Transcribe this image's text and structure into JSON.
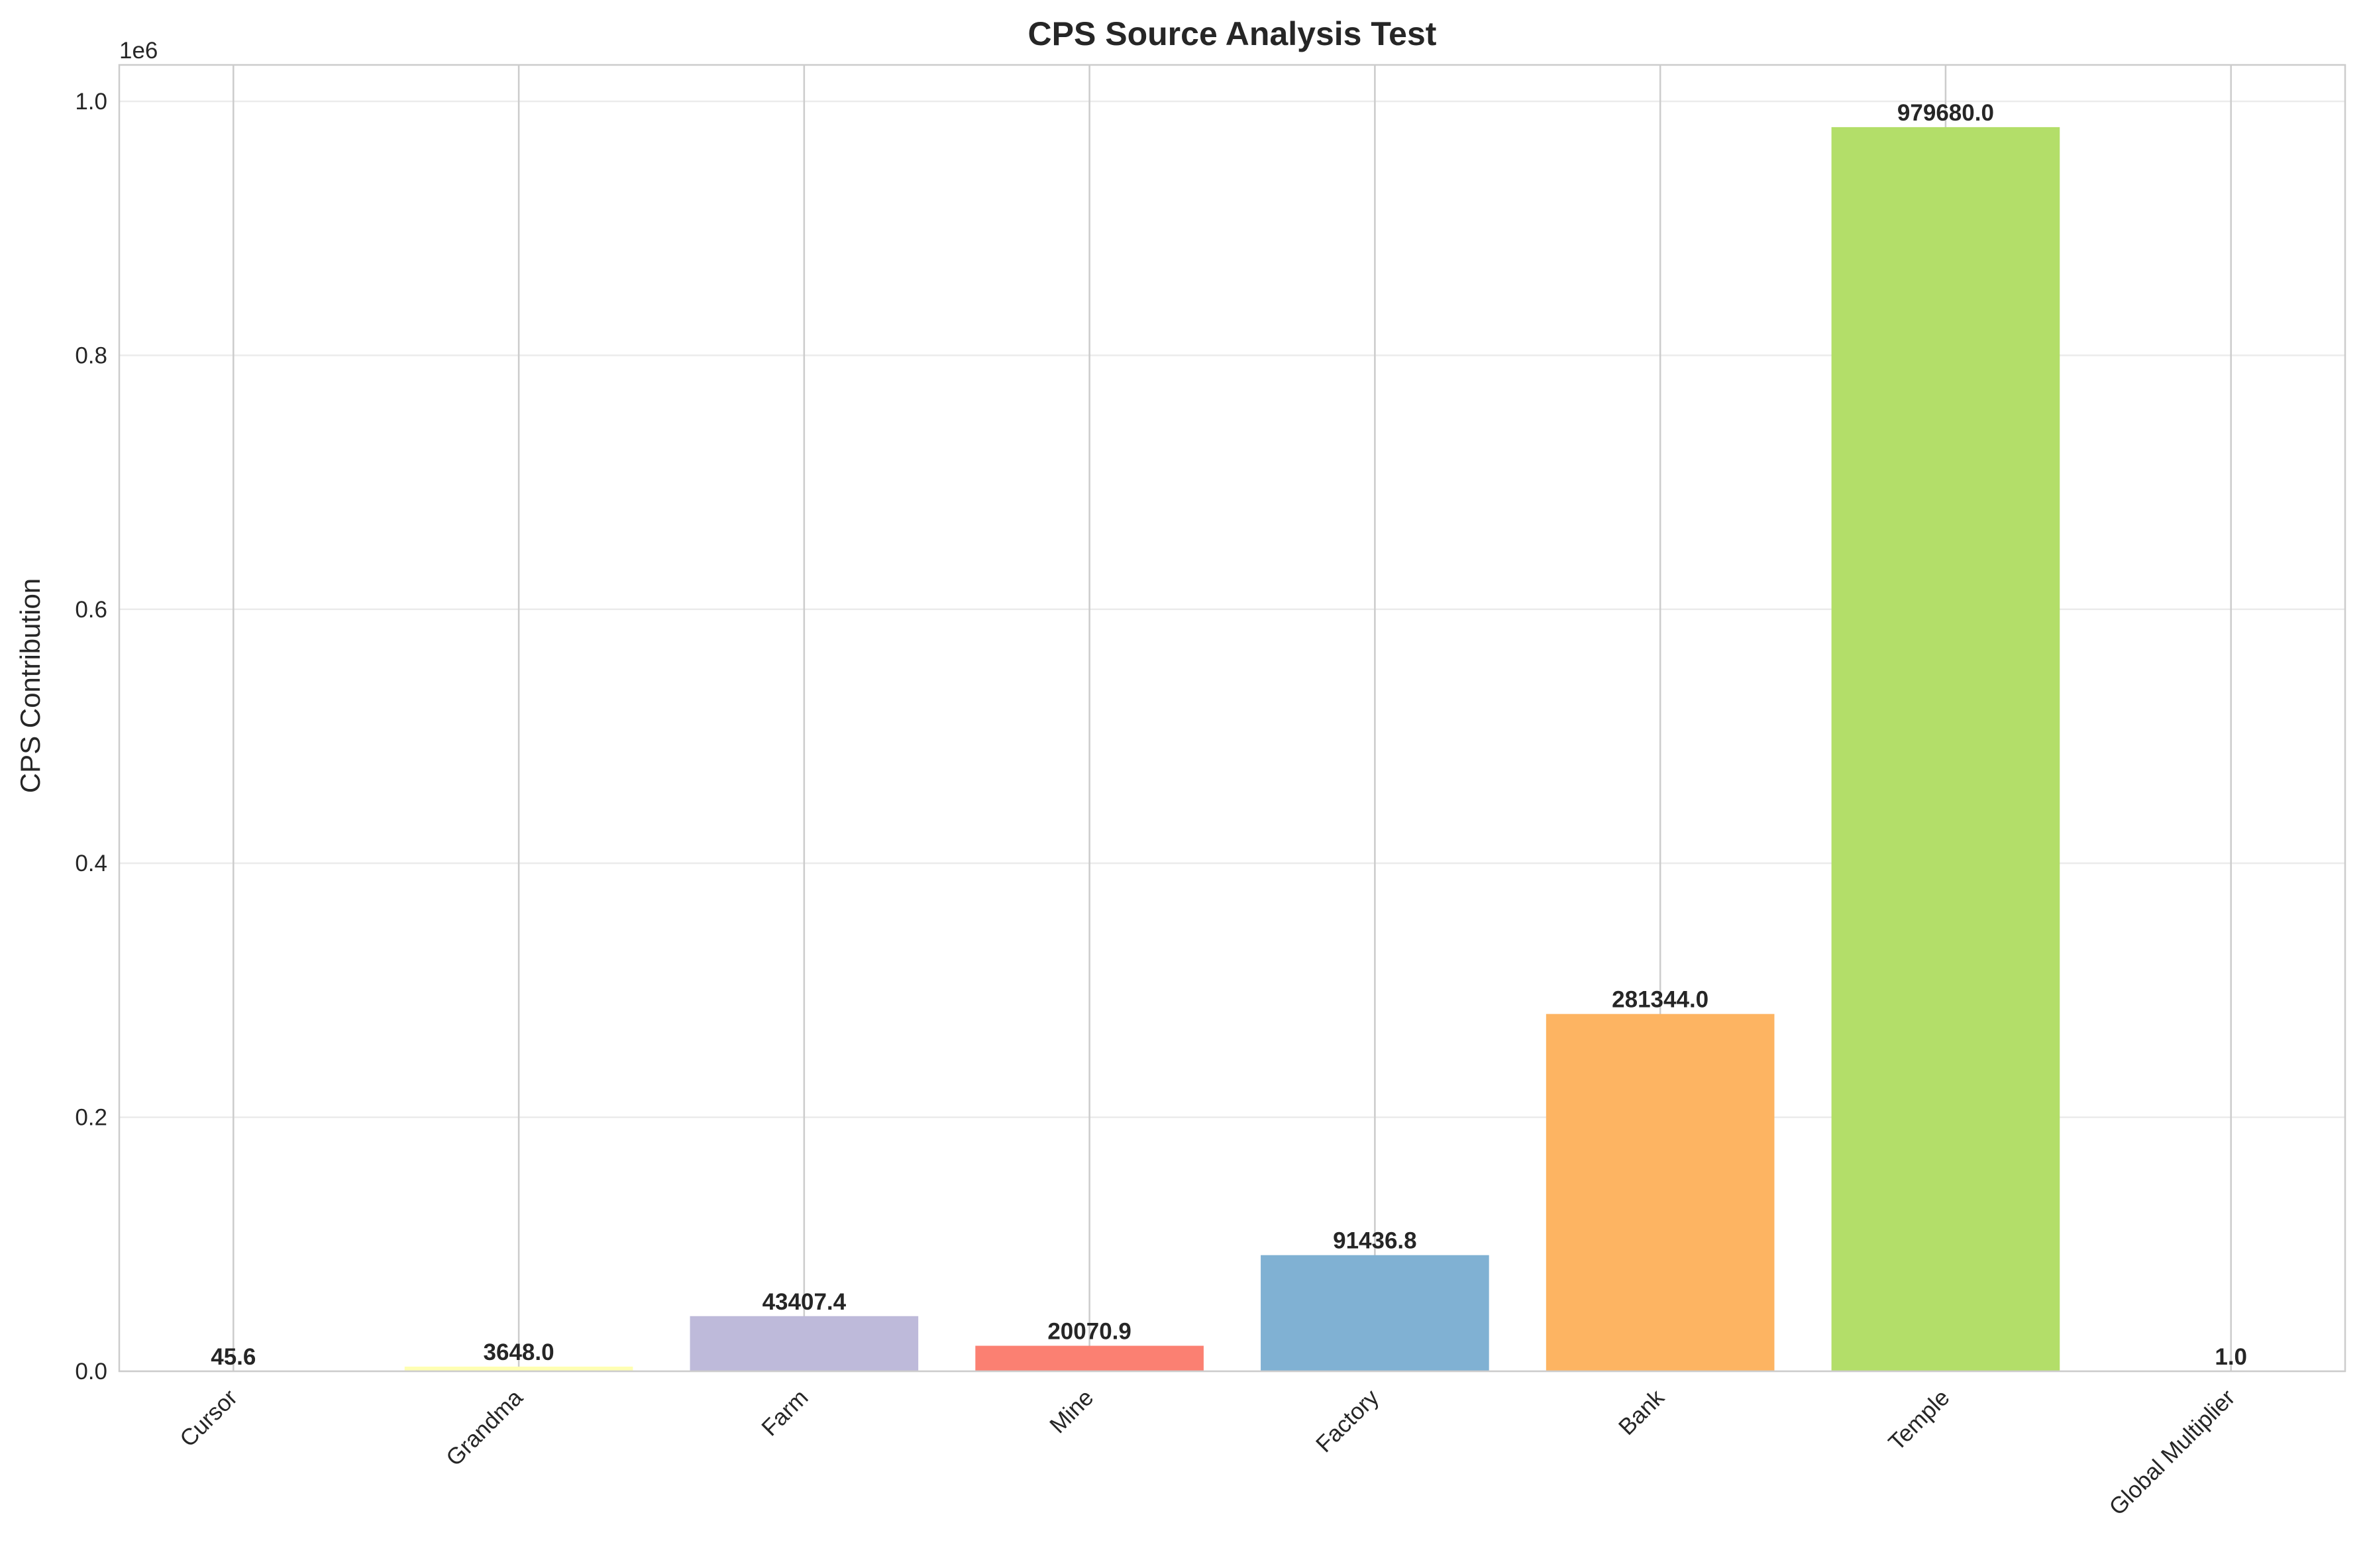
{
  "chart_data": {
    "type": "bar",
    "title": "CPS Source Analysis Test",
    "xlabel": "",
    "ylabel": "CPS Contribution",
    "y_offset_label": "1e6",
    "ylim": [
      0,
      1028664
    ],
    "y_ticks": [
      0,
      200000,
      400000,
      600000,
      800000,
      1000000
    ],
    "y_tick_labels": [
      "0.0",
      "0.2",
      "0.4",
      "0.6",
      "0.8",
      "1.0"
    ],
    "grid": true,
    "legend": "none",
    "categories": [
      "Cursor",
      "Grandma",
      "Farm",
      "Mine",
      "Factory",
      "Bank",
      "Temple",
      "Global Multiplier"
    ],
    "values": [
      45.6,
      3648.0,
      43407.4,
      20070.9,
      91436.8,
      281344.0,
      979680.0,
      1.0
    ],
    "value_labels": [
      "45.6",
      "3648.0",
      "43407.4",
      "20070.9",
      "91436.8",
      "281344.0",
      "979680.0",
      "1.0"
    ],
    "colors": [
      "#8dd3c7",
      "#ffffb3",
      "#bebada",
      "#fb8072",
      "#80b1d3",
      "#fdb462",
      "#b3de69",
      "#fccde5"
    ]
  }
}
